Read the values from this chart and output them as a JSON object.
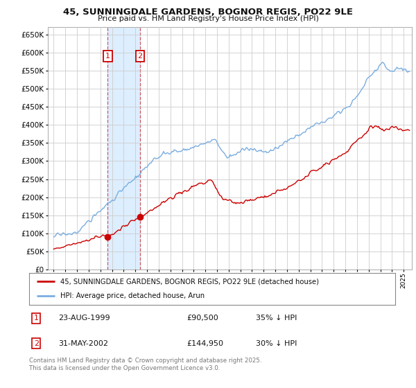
{
  "title_line1": "45, SUNNINGDALE GARDENS, BOGNOR REGIS, PO22 9LE",
  "title_line2": "Price paid vs. HM Land Registry's House Price Index (HPI)",
  "legend_label_red": "45, SUNNINGDALE GARDENS, BOGNOR REGIS, PO22 9LE (detached house)",
  "legend_label_blue": "HPI: Average price, detached house, Arun",
  "transaction1_label": "1",
  "transaction1_date": "23-AUG-1999",
  "transaction1_price": "£90,500",
  "transaction1_hpi": "35% ↓ HPI",
  "transaction2_label": "2",
  "transaction2_date": "31-MAY-2002",
  "transaction2_price": "£144,950",
  "transaction2_hpi": "30% ↓ HPI",
  "copyright_text": "Contains HM Land Registry data © Crown copyright and database right 2025.\nThis data is licensed under the Open Government Licence v3.0.",
  "bg_color": "#ffffff",
  "grid_color": "#cccccc",
  "red_color": "#cc0000",
  "blue_color": "#7aade0",
  "highlight_color": "#ddeeff",
  "ylim": [
    0,
    670000
  ],
  "yticks": [
    0,
    50000,
    100000,
    150000,
    200000,
    250000,
    300000,
    350000,
    400000,
    450000,
    500000,
    550000,
    600000,
    650000
  ],
  "transaction1_x": 1999.63,
  "transaction2_x": 2002.41,
  "transaction1_y": 90500,
  "transaction2_y": 144950,
  "xmin": 1994.5,
  "xmax": 2025.7
}
